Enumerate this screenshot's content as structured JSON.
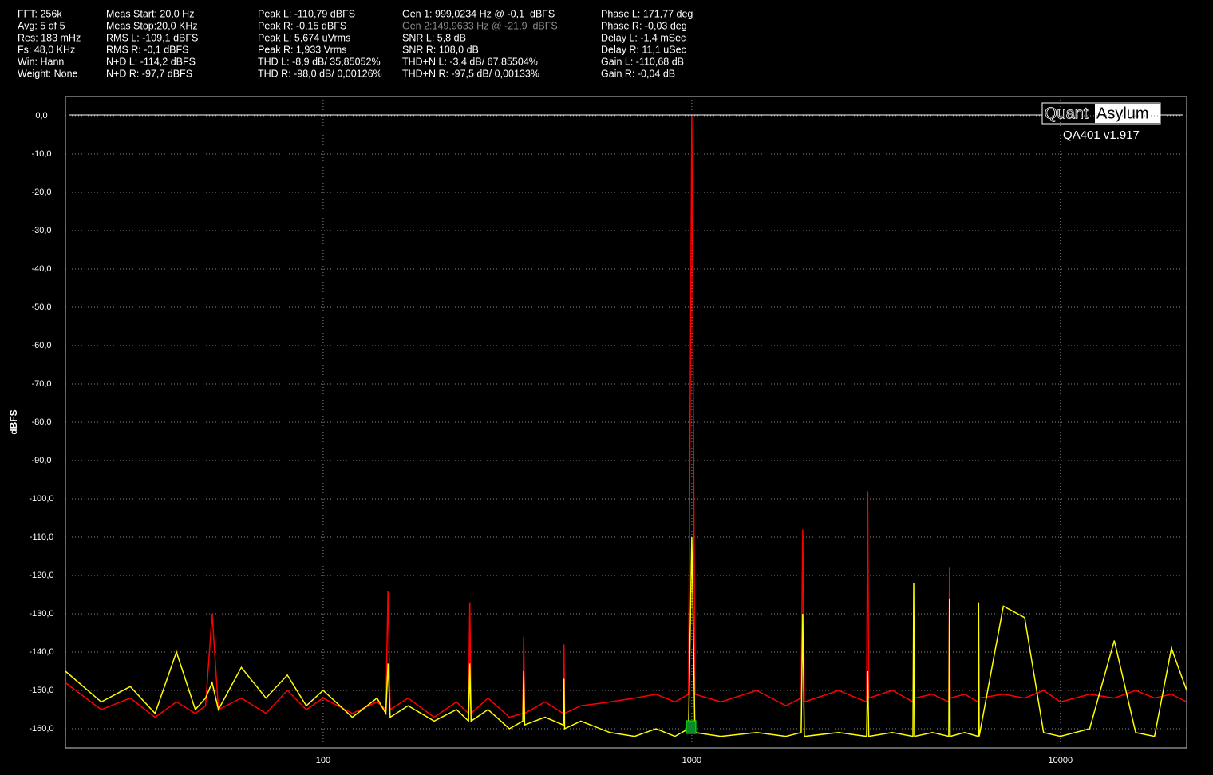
{
  "header": {
    "columns": [
      [
        "FFT: 256k",
        "Avg: 5 of 5",
        "Res: 183 mHz",
        "Fs: 48,0 KHz",
        "Win: Hann",
        "Weight: None"
      ],
      [
        "Meas Start: 20,0 Hz",
        "Meas Stop:20,0 KHz",
        "RMS L: -109,1 dBFS",
        "RMS R: -0,1 dBFS",
        "N+D L: -114,2 dBFS",
        "N+D R: -97,7 dBFS"
      ],
      [
        "Peak L: -110,79 dBFS",
        "Peak R: -0,15 dBFS",
        "Peak L: 5,674 uVrms",
        "Peak R: 1,933 Vrms",
        "THD L: -8,9 dB/ 35,85052%",
        "THD R: -98,0 dB/ 0,00126%"
      ],
      [
        "Gen 1: 999,0234 Hz @ -0,1  dBFS",
        "Gen 2:149,9633 Hz @ -21,9  dBFS",
        "SNR L: 5,8 dB",
        "SNR R: 108,0 dB",
        "THD+N L: -3,4 dB/ 67,85504%",
        "THD+N R: -97,5 dB/ 0,00133%"
      ],
      [
        "Phase L: 171,77 deg",
        "Phase R: -0,03 deg",
        "Delay L: -1,4 mSec",
        "Delay R: 11,1 uSec",
        "Gain L: -110,68 dB",
        "Gain R: -0,04 dB"
      ]
    ]
  },
  "logo": {
    "left": "Quant",
    "right": "Asylum",
    "version": "QA401 v1.917"
  },
  "chart_data": {
    "type": "line",
    "ylabel": "dBFS",
    "xscale": "log",
    "grid": true,
    "xlim": [
      20,
      22000
    ],
    "ylim": [
      -165,
      5
    ],
    "xticks": [
      100,
      1000,
      10000
    ],
    "yticks": [
      {
        "value": 0,
        "label": "0,0"
      },
      {
        "value": -10,
        "label": "-10,0"
      },
      {
        "value": -20,
        "label": "-20,0"
      },
      {
        "value": -30,
        "label": "-30,0"
      },
      {
        "value": -40,
        "label": "-40,0"
      },
      {
        "value": -50,
        "label": "-50,0"
      },
      {
        "value": -60,
        "label": "-60,0"
      },
      {
        "value": -70,
        "label": "-70,0"
      },
      {
        "value": -80,
        "label": "-80,0"
      },
      {
        "value": -90,
        "label": "-90,0"
      },
      {
        "value": -100,
        "label": "-100,0"
      },
      {
        "value": -110,
        "label": "-110,0"
      },
      {
        "value": -120,
        "label": "-120,0"
      },
      {
        "value": -130,
        "label": "-130,0"
      },
      {
        "value": -140,
        "label": "-140,0"
      },
      {
        "value": -150,
        "label": "-150,0"
      },
      {
        "value": -160,
        "label": "-160,0"
      }
    ],
    "x": [
      20,
      25,
      30,
      35,
      40,
      45,
      48,
      50,
      52,
      60,
      70,
      80,
      90,
      100,
      120,
      140,
      148,
      150,
      152,
      170,
      200,
      230,
      248,
      250,
      252,
      280,
      320,
      348,
      350,
      352,
      400,
      448,
      450,
      452,
      500,
      600,
      700,
      800,
      900,
      980,
      1000,
      1020,
      1200,
      1500,
      1800,
      1980,
      2000,
      2020,
      2500,
      2980,
      3000,
      3020,
      3500,
      3980,
      4000,
      4020,
      4500,
      4980,
      5000,
      5020,
      5500,
      5980,
      6000,
      6020,
      7000,
      8000,
      9000,
      10000,
      12000,
      14000,
      16000,
      18000,
      20000,
      22000
    ],
    "series": [
      {
        "color": "#ff0000",
        "values": [
          -148,
          -155,
          -152,
          -157,
          -153,
          -156,
          -154,
          -130,
          -155,
          -152,
          -156,
          -150,
          -155,
          -152,
          -156,
          -153,
          -155,
          -124,
          -155,
          -152,
          -157,
          -153,
          -156,
          -127,
          -156,
          -152,
          -157,
          -156,
          -136,
          -156,
          -153,
          -156,
          -138,
          -156,
          -154,
          -153,
          -152,
          -151,
          -153,
          -151,
          0,
          -151,
          -153,
          -150,
          -154,
          -152,
          -108,
          -153,
          -150,
          -153,
          -98,
          -152,
          -150,
          -153,
          -150,
          -152,
          -151,
          -153,
          -118,
          -152,
          -151,
          -153,
          -150,
          -152,
          -151,
          -152,
          -150,
          -153,
          -151,
          -152,
          -150,
          -152,
          -151,
          -153
        ]
      },
      {
        "color": "#ffff00",
        "values": [
          -145,
          -153,
          -149,
          -156,
          -140,
          -155,
          -152,
          -148,
          -155,
          -144,
          -152,
          -146,
          -154,
          -150,
          -157,
          -152,
          -156,
          -143,
          -157,
          -154,
          -158,
          -155,
          -158,
          -143,
          -158,
          -155,
          -160,
          -158,
          -145,
          -159,
          -157,
          -159,
          -147,
          -160,
          -158,
          -161,
          -162,
          -160,
          -162,
          -160,
          -110,
          -161,
          -162,
          -161,
          -162,
          -161,
          -130,
          -162,
          -161,
          -162,
          -145,
          -162,
          -161,
          -162,
          -122,
          -162,
          -161,
          -162,
          -126,
          -162,
          -161,
          -162,
          -127,
          -162,
          -128,
          -131,
          -161,
          -162,
          -160,
          -137,
          -161,
          -162,
          -139,
          -150
        ]
      }
    ]
  }
}
